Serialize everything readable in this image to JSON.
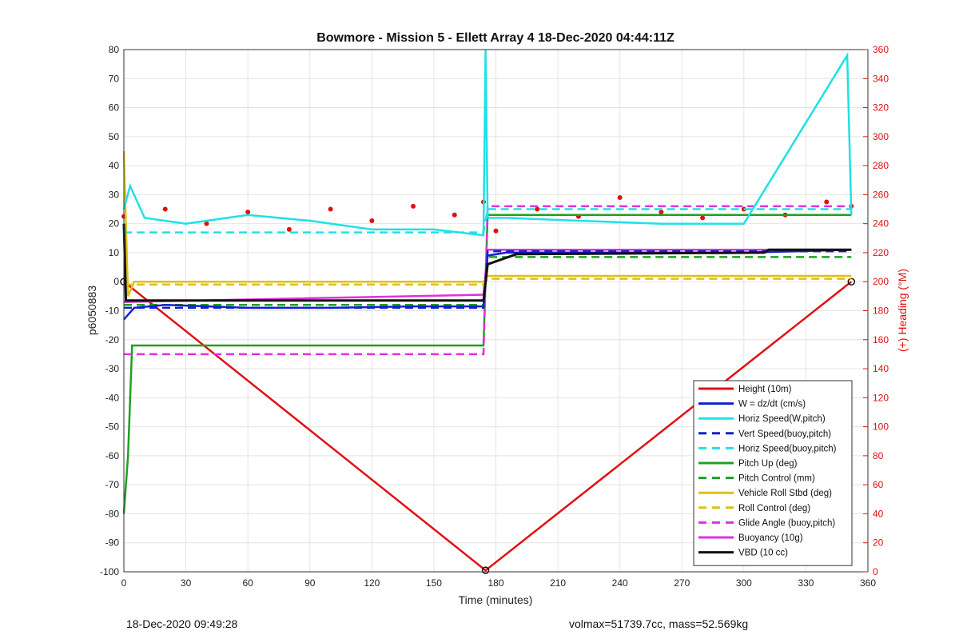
{
  "chart_data": {
    "type": "line",
    "title": "Bowmore - Mission 5 - Ellett Array 4 18-Dec-2020 04:44:11Z",
    "xlabel": "Time (minutes)",
    "ylabel": "p6050883",
    "ylabel_right": "(+) Heading (°M)",
    "xlim": [
      0,
      360
    ],
    "ylim": [
      -100,
      80
    ],
    "ylim_right": [
      0,
      360
    ],
    "x_ticks": [
      0,
      30,
      60,
      90,
      120,
      150,
      180,
      210,
      240,
      270,
      300,
      330,
      360
    ],
    "y_ticks": [
      -100,
      -90,
      -80,
      -70,
      -60,
      -50,
      -40,
      -30,
      -20,
      -10,
      0,
      10,
      20,
      30,
      40,
      50,
      60,
      70,
      80
    ],
    "y_ticks_right": [
      0,
      20,
      40,
      60,
      80,
      100,
      120,
      140,
      160,
      180,
      200,
      220,
      240,
      260,
      280,
      300,
      320,
      340,
      360
    ],
    "grid": true,
    "legend_position": "bottom-right",
    "series": [
      {
        "name": "Height (10m)",
        "color": "#e01010",
        "style": "solid",
        "x": [
          0,
          175,
          352
        ],
        "y": [
          0,
          -99.5,
          0
        ]
      },
      {
        "name": "W = dz/dt (cm/s)",
        "color": "#1020d0",
        "style": "solid",
        "x": [
          0,
          5,
          20,
          60,
          100,
          140,
          174,
          176,
          185,
          220,
          260,
          300,
          352
        ],
        "y": [
          -13,
          -9,
          -8,
          -9,
          -9,
          -8.5,
          -8.5,
          9,
          10,
          10,
          10,
          10,
          11
        ]
      },
      {
        "name": "Horiz Speed(W,pitch)",
        "color": "#20e0e8",
        "style": "solid",
        "x": [
          0,
          3,
          10,
          30,
          60,
          90,
          120,
          150,
          174,
          175,
          176,
          185,
          220,
          260,
          300,
          350,
          352
        ],
        "y": [
          25,
          33,
          22,
          20,
          23,
          21,
          18,
          18,
          16,
          80,
          22,
          22,
          21,
          20,
          20,
          78,
          23
        ]
      },
      {
        "name": "Vert Speed(buoy,pitch)",
        "color": "#1020d0",
        "style": "dashed",
        "x": [
          0,
          174,
          176,
          352
        ],
        "y": [
          -9,
          -9,
          10.5,
          10.5
        ]
      },
      {
        "name": "Horiz Speed(buoy,pitch)",
        "color": "#20e0e8",
        "style": "dashed",
        "x": [
          0,
          174,
          176,
          352
        ],
        "y": [
          17,
          17,
          25,
          25
        ]
      },
      {
        "name": "Pitch Up (deg)",
        "color": "#20a020",
        "style": "solid",
        "x": [
          0,
          2,
          4,
          174,
          176,
          352
        ],
        "y": [
          -80,
          -60,
          -22,
          -22,
          23,
          23
        ]
      },
      {
        "name": "Pitch Control (mm)",
        "color": "#20a020",
        "style": "dashed",
        "x": [
          0,
          174,
          176,
          352
        ],
        "y": [
          -8,
          -8,
          8.5,
          8.5
        ]
      },
      {
        "name": "Vehicle Roll Stbd (deg)",
        "color": "#e0c010",
        "style": "solid",
        "x": [
          0,
          2,
          5,
          174,
          176,
          352
        ],
        "y": [
          45,
          -5,
          0,
          0,
          2,
          2
        ]
      },
      {
        "name": "Roll Control (deg)",
        "color": "#e0c010",
        "style": "dashed",
        "x": [
          0,
          174,
          176,
          352
        ],
        "y": [
          -1,
          -1,
          1,
          1
        ]
      },
      {
        "name": "Glide Angle (buoy,pitch)",
        "color": "#e030e0",
        "style": "dashed",
        "x": [
          0,
          174,
          176,
          352
        ],
        "y": [
          -25,
          -25,
          26,
          26
        ]
      },
      {
        "name": "Buoyancy (10g)",
        "color": "#e030e0",
        "style": "solid",
        "x": [
          0,
          174,
          176,
          352
        ],
        "y": [
          -7,
          -4.5,
          11,
          11
        ]
      },
      {
        "name": "VBD (10 cc)",
        "color": "#111111",
        "style": "solid",
        "x": [
          0,
          1,
          174,
          176,
          180,
          190,
          310,
          312,
          352
        ],
        "y": [
          20,
          -6.5,
          -6.5,
          6,
          7,
          9.5,
          10,
          11,
          11
        ]
      },
      {
        "name": "Heading (°M)",
        "color": "#e01010",
        "style": "dots",
        "axis": "right",
        "x": [
          0,
          20,
          40,
          60,
          80,
          100,
          120,
          140,
          160,
          174,
          180,
          200,
          220,
          240,
          260,
          280,
          300,
          320,
          340,
          352
        ],
        "y": [
          245,
          250,
          240,
          248,
          236,
          250,
          242,
          252,
          246,
          255,
          235,
          250,
          245,
          258,
          248,
          244,
          250,
          246,
          255,
          252
        ]
      }
    ]
  },
  "footer": {
    "left": "18-Dec-2020 09:49:28",
    "right": "volmax=51739.7cc, mass=52.569kg"
  }
}
